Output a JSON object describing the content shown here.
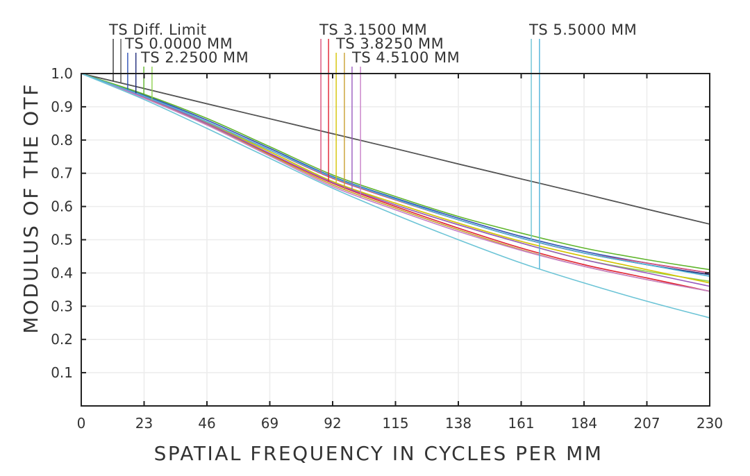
{
  "chart_data": {
    "type": "line",
    "title": "",
    "xlabel": "SPATIAL FREQUENCY IN CYCLES PER MM",
    "ylabel": "MODULUS OF THE OTF",
    "xlim": [
      0,
      230
    ],
    "ylim": [
      0,
      1.0
    ],
    "grid": true,
    "legend_placement": "top",
    "x_ticks": [
      "0",
      "23",
      "46",
      "69",
      "92",
      "115",
      "138",
      "161",
      "184",
      "207",
      "230"
    ],
    "y_ticks": [
      "0.1",
      "0.2",
      "0.3",
      "0.4",
      "0.5",
      "0.6",
      "0.7",
      "0.8",
      "0.9",
      "1.0"
    ],
    "x": [
      0,
      23,
      46,
      69,
      92,
      115,
      138,
      161,
      184,
      207,
      230
    ],
    "legend": [
      {
        "label": "TS  Diff. Limit",
        "colors": [
          "#333333",
          "#555555"
        ]
      },
      {
        "label": "TS  0.0000  MM",
        "colors": [
          "#2b4fb5",
          "#1e2a7a"
        ]
      },
      {
        "label": "TS  2.2500  MM",
        "colors": [
          "#5fb52b",
          "#8fd14f"
        ]
      },
      {
        "label": "TS  3.1500  MM",
        "colors": [
          "#d94f7a",
          "#e02030"
        ]
      },
      {
        "label": "TS  3.8250  MM",
        "colors": [
          "#d4c400",
          "#c8a030"
        ]
      },
      {
        "label": "TS  4.5100  MM",
        "colors": [
          "#9a5bbf",
          "#c77fc7"
        ]
      },
      {
        "label": "TS  5.5000  MM",
        "colors": [
          "#6cc4d6",
          "#4fb3d9"
        ]
      }
    ],
    "series": [
      {
        "group": 0,
        "color": "#333333",
        "values": [
          1,
          0.955,
          0.909,
          0.864,
          0.819,
          0.774,
          0.728,
          0.683,
          0.638,
          0.592,
          0.547
        ]
      },
      {
        "group": 0,
        "color": "#555555",
        "values": [
          1,
          0.955,
          0.909,
          0.864,
          0.819,
          0.774,
          0.728,
          0.683,
          0.638,
          0.592,
          0.547
        ]
      },
      {
        "group": 1,
        "color": "#2b4fb5",
        "values": [
          1,
          0.935,
          0.86,
          0.775,
          0.69,
          0.625,
          0.565,
          0.51,
          0.465,
          0.43,
          0.4
        ]
      },
      {
        "group": 1,
        "color": "#1e2a7a",
        "values": [
          1,
          0.932,
          0.855,
          0.77,
          0.685,
          0.62,
          0.56,
          0.505,
          0.46,
          0.425,
          0.395
        ]
      },
      {
        "group": 2,
        "color": "#5fb52b",
        "values": [
          1,
          0.938,
          0.865,
          0.78,
          0.695,
          0.63,
          0.57,
          0.52,
          0.475,
          0.44,
          0.41
        ]
      },
      {
        "group": 2,
        "color": "#8fd14f",
        "values": [
          1,
          0.93,
          0.85,
          0.765,
          0.675,
          0.605,
          0.545,
          0.49,
          0.44,
          0.405,
          0.375
        ]
      },
      {
        "group": 3,
        "color": "#d94f7a",
        "values": [
          1,
          0.93,
          0.855,
          0.77,
          0.685,
          0.62,
          0.56,
          0.505,
          0.46,
          0.43,
          0.4
        ]
      },
      {
        "group": 3,
        "color": "#e02030",
        "values": [
          1,
          0.928,
          0.848,
          0.758,
          0.67,
          0.6,
          0.535,
          0.475,
          0.425,
          0.385,
          0.345
        ]
      },
      {
        "group": 4,
        "color": "#d4c400",
        "values": [
          1,
          0.932,
          0.853,
          0.765,
          0.675,
          0.61,
          0.55,
          0.495,
          0.45,
          0.41,
          0.37
        ]
      },
      {
        "group": 4,
        "color": "#c8a030",
        "values": [
          1,
          0.928,
          0.846,
          0.755,
          0.665,
          0.595,
          0.53,
          0.47,
          0.42,
          0.38,
          0.345
        ]
      },
      {
        "group": 5,
        "color": "#9a5bbf",
        "values": [
          1,
          0.93,
          0.85,
          0.76,
          0.672,
          0.605,
          0.545,
          0.49,
          0.44,
          0.4,
          0.36
        ]
      },
      {
        "group": 5,
        "color": "#c77fc7",
        "values": [
          1,
          0.926,
          0.845,
          0.752,
          0.66,
          0.59,
          0.525,
          0.468,
          0.42,
          0.38,
          0.345
        ]
      },
      {
        "group": 6,
        "color": "#4fb3d9",
        "values": [
          1,
          0.932,
          0.855,
          0.77,
          0.688,
          0.622,
          0.56,
          0.505,
          0.46,
          0.425,
          0.39
        ]
      },
      {
        "group": 6,
        "color": "#6cc4d6",
        "values": [
          1,
          0.922,
          0.835,
          0.745,
          0.655,
          0.575,
          0.5,
          0.43,
          0.37,
          0.315,
          0.265
        ]
      }
    ]
  }
}
